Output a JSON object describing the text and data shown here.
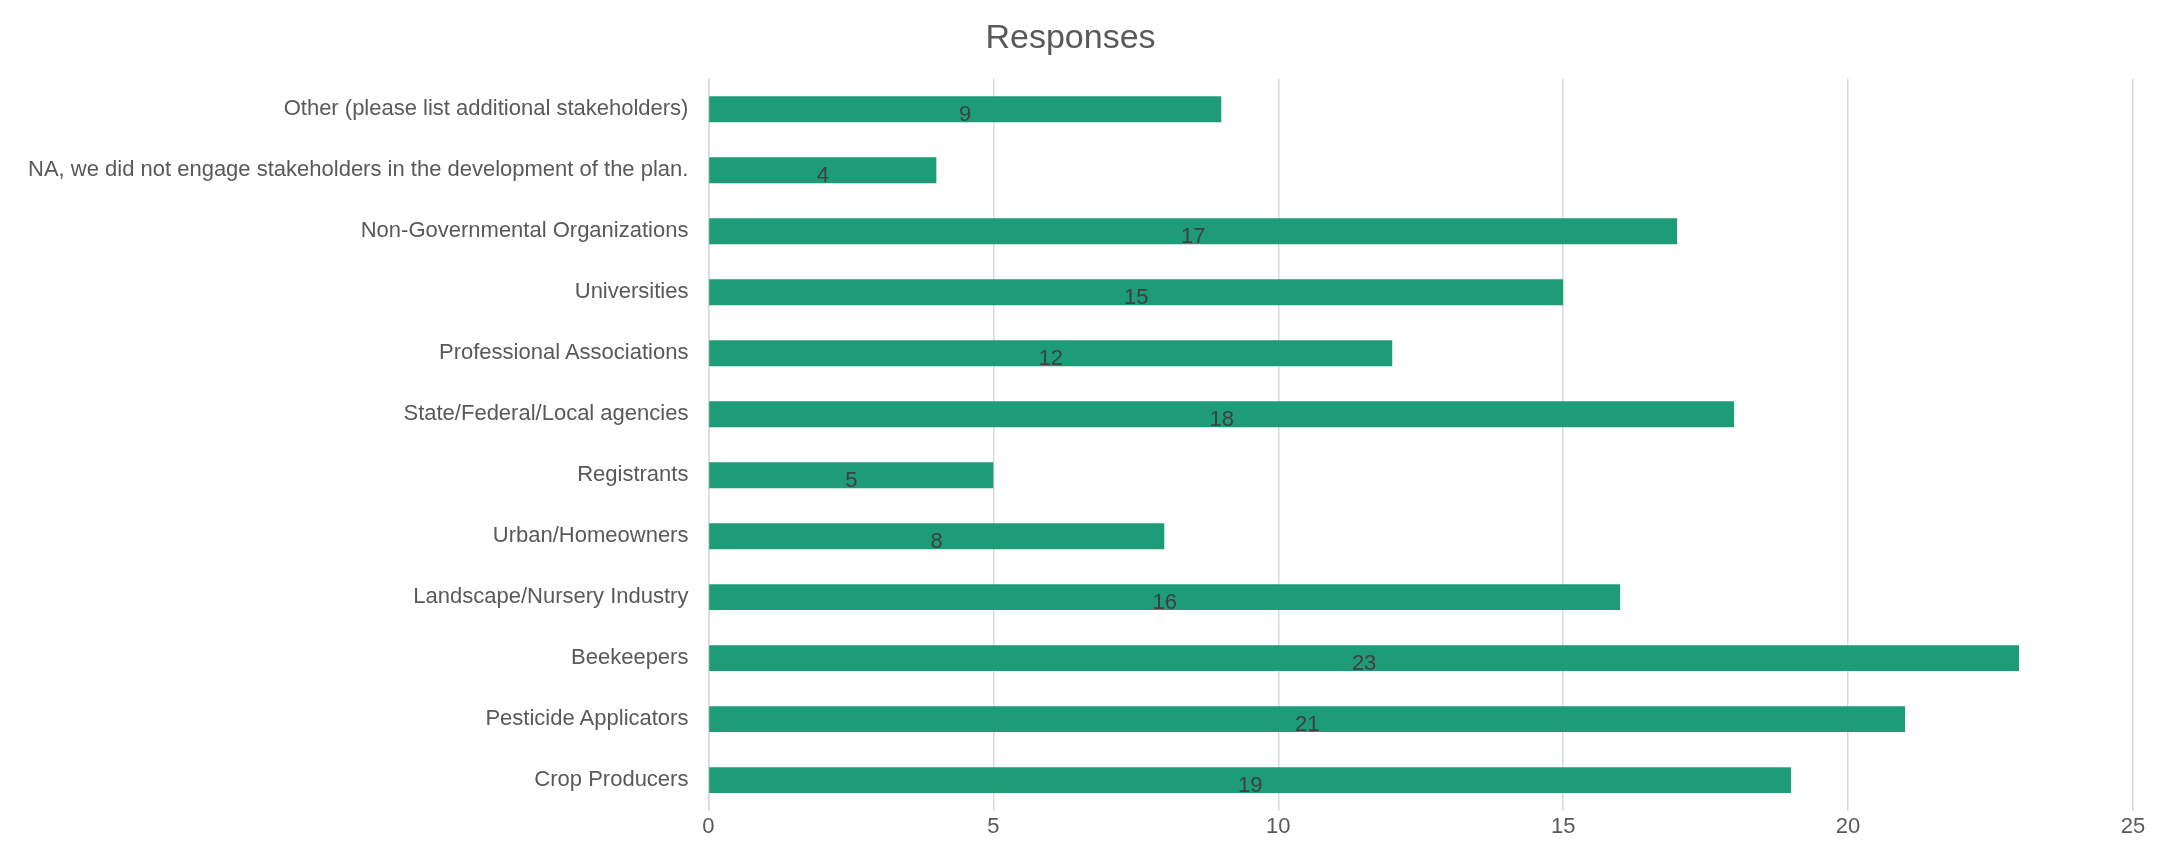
{
  "chart_data": {
    "type": "bar",
    "orientation": "horizontal",
    "title": "Responses",
    "categories": [
      "Other (please list additional stakeholders)",
      "NA, we did not engage stakeholders in the development of the plan.",
      "Non-Governmental Organizations",
      "Universities",
      "Professional Associations",
      "State/Federal/Local agencies",
      "Registrants",
      "Urban/Homeowners",
      "Landscape/Nursery Industry",
      "Beekeepers",
      "Pesticide Applicators",
      "Crop Producers"
    ],
    "values": [
      9,
      4,
      17,
      15,
      12,
      18,
      5,
      8,
      16,
      23,
      21,
      19
    ],
    "color": "#1e9c78",
    "xlim": [
      0,
      25
    ],
    "xticks": [
      0,
      5,
      10,
      15,
      20,
      25
    ],
    "grid": "x",
    "legend": false,
    "data_labels": true
  }
}
